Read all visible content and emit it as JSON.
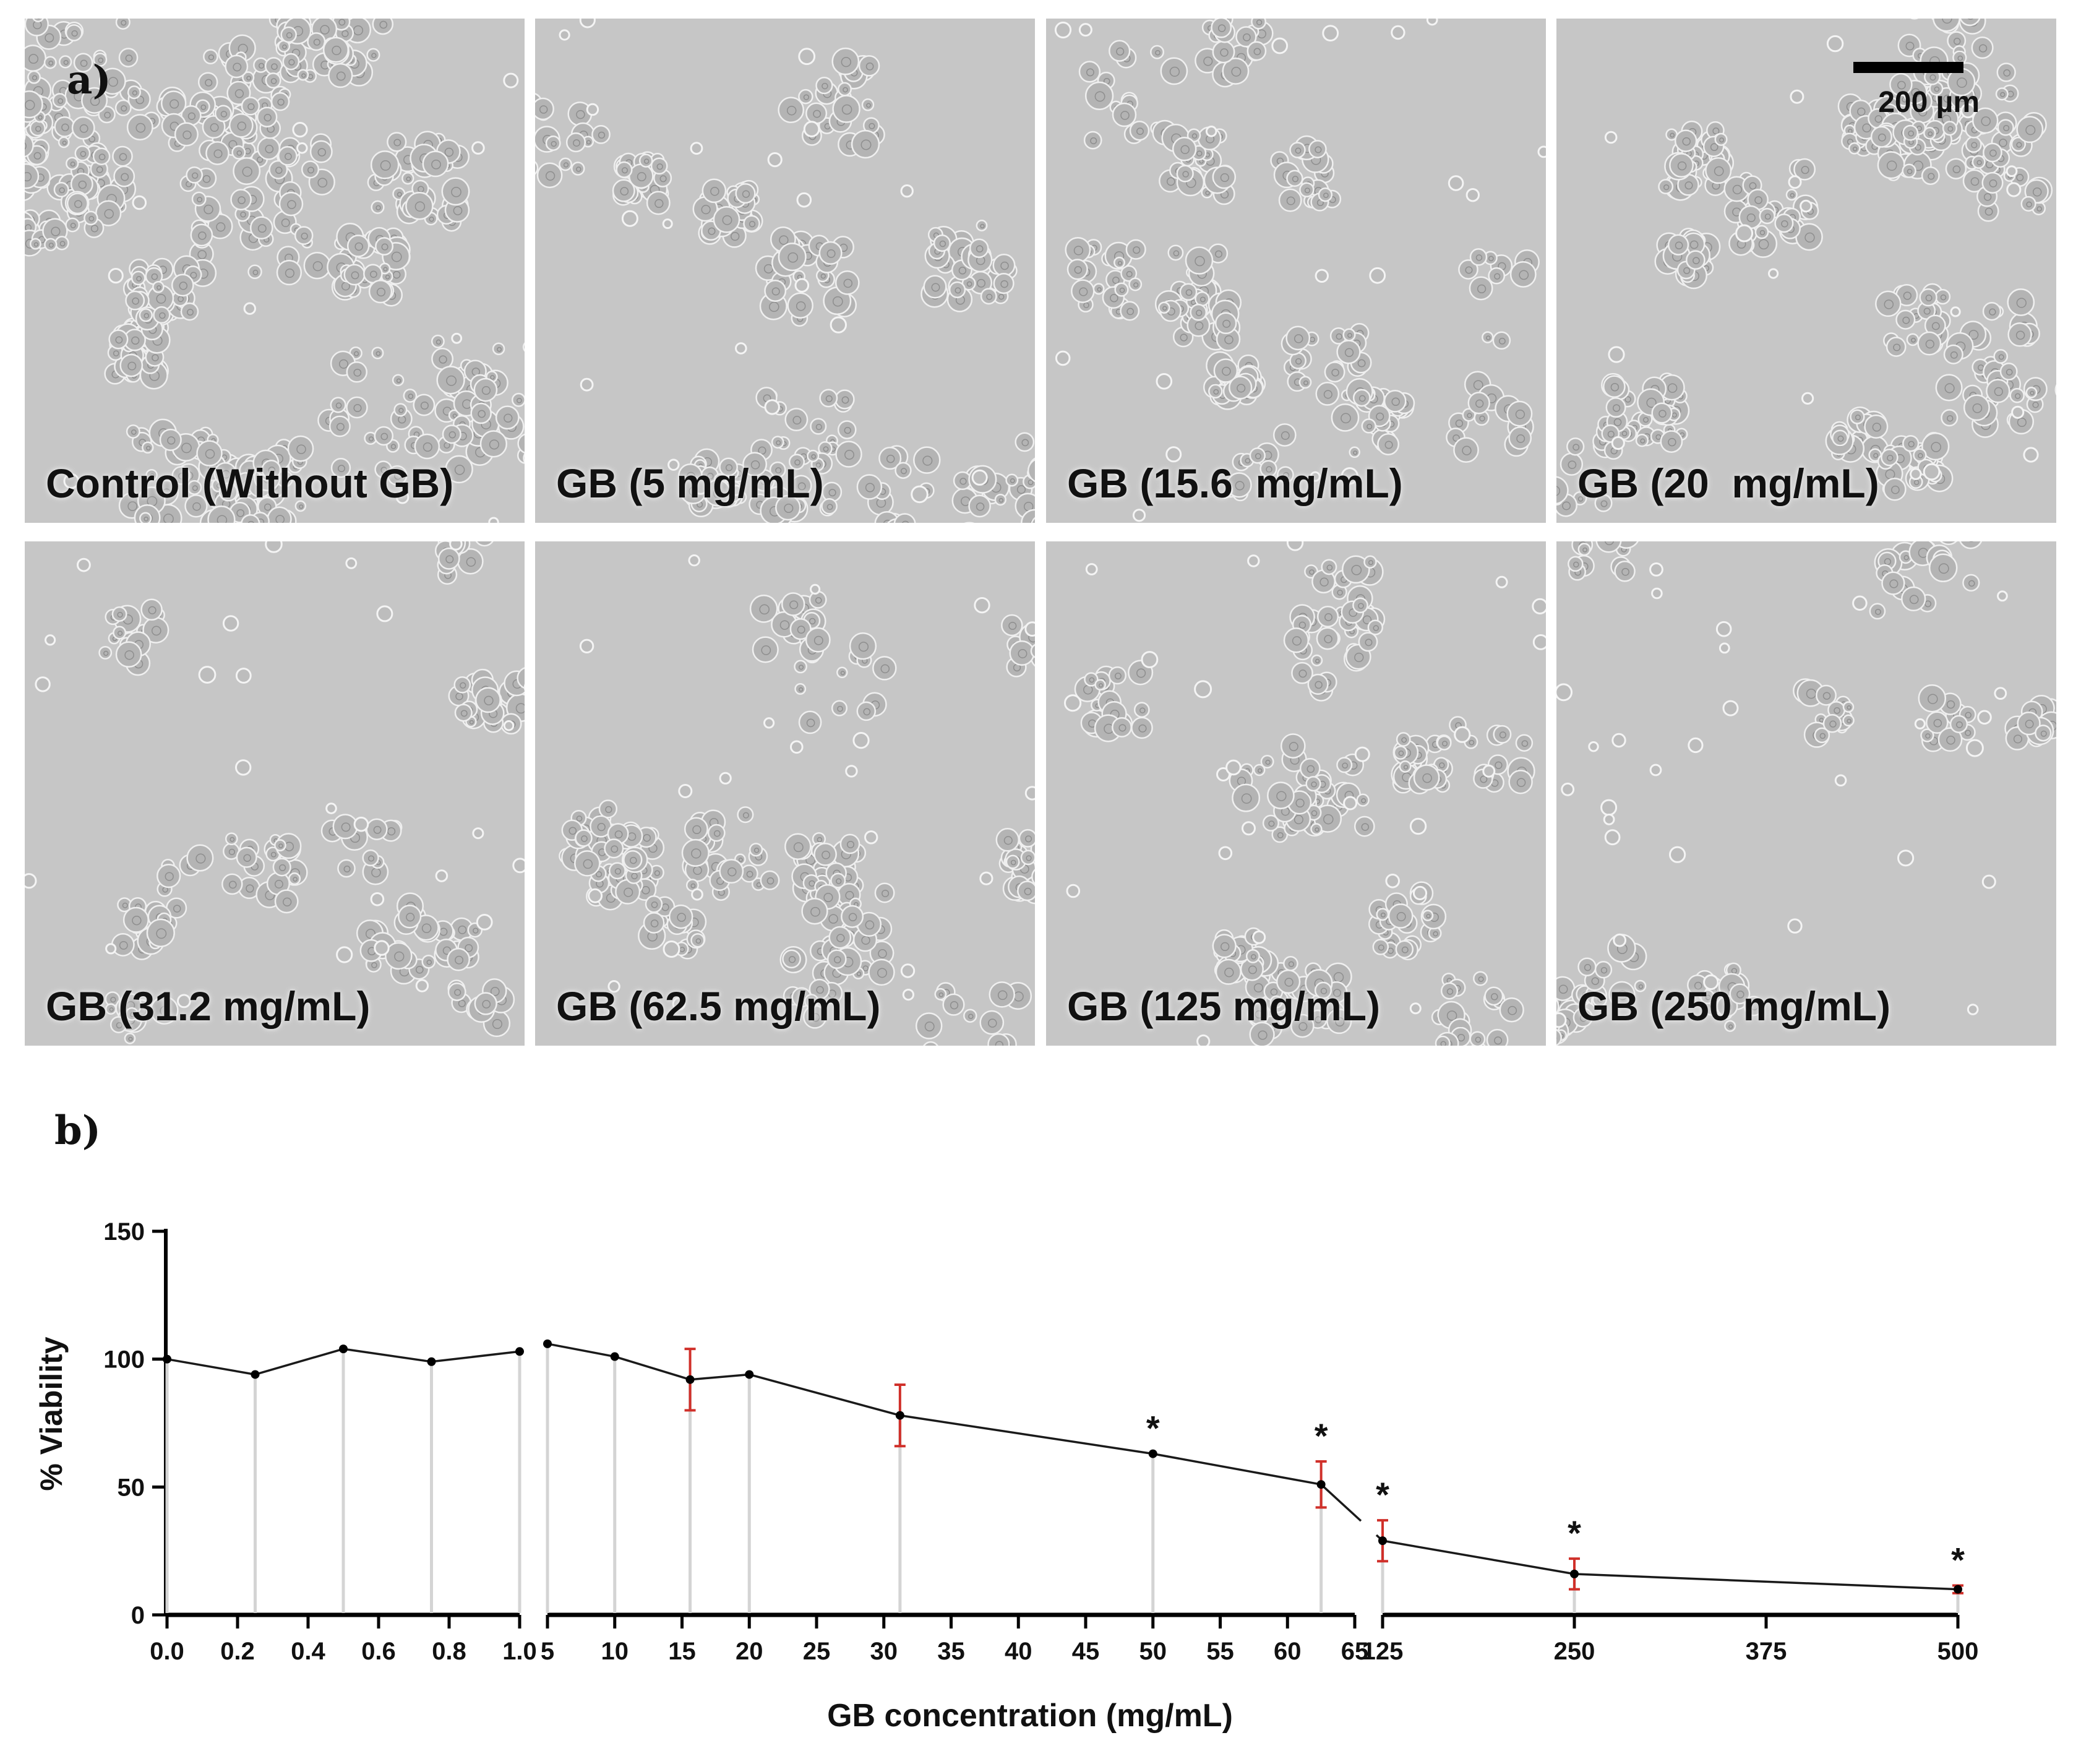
{
  "figure": {
    "panel_a_label": "a)",
    "panel_b_label": "b)",
    "scale_bar_label": "200 µm",
    "micrographs": [
      {
        "label": "Control (Without GB)",
        "density": 0.95
      },
      {
        "label": "GB (5 mg/mL)",
        "density": 0.55
      },
      {
        "label": "GB (15.6  mg/mL)",
        "density": 0.6
      },
      {
        "label": "GB (20  mg/mL)",
        "density": 0.7
      },
      {
        "label": "GB (31.2 mg/mL)",
        "density": 0.4
      },
      {
        "label": "GB (62.5 mg/mL)",
        "density": 0.55
      },
      {
        "label": "GB (125 mg/mL)",
        "density": 0.45
      },
      {
        "label": "GB (250 mg/mL)",
        "density": 0.25
      }
    ]
  },
  "chart_data": {
    "type": "line",
    "ylabel": "% Viability",
    "xlabel": "GB concentration (mg/mL)",
    "ylim": [
      0,
      150
    ],
    "yticks": [
      0,
      50,
      100,
      150
    ],
    "segments": [
      {
        "xlim": [
          0,
          1.0
        ],
        "xticks": [
          0.0,
          0.2,
          0.4,
          0.6,
          0.8,
          1.0
        ],
        "ticklabels": [
          "0.0",
          "0.2",
          "0.4",
          "0.6",
          "0.8",
          "1.0"
        ]
      },
      {
        "xlim": [
          5,
          65
        ],
        "xticks": [
          5,
          10,
          15,
          20,
          25,
          30,
          35,
          40,
          45,
          50,
          55,
          60,
          65
        ],
        "ticklabels": [
          "5",
          "10",
          "15",
          "20",
          "25",
          "30",
          "35",
          "40",
          "45",
          "50",
          "55",
          "60",
          "65"
        ]
      },
      {
        "xlim": [
          125,
          500
        ],
        "xticks": [
          125,
          250,
          375,
          500
        ],
        "ticklabels": [
          "125",
          "250",
          "375",
          "500"
        ]
      }
    ],
    "series": [
      {
        "points": [
          {
            "x": 0,
            "y": 100,
            "err": 0,
            "sig": false
          },
          {
            "x": 0.25,
            "y": 94,
            "err": 0,
            "sig": false
          },
          {
            "x": 0.5,
            "y": 104,
            "err": 0,
            "sig": false
          },
          {
            "x": 0.75,
            "y": 99,
            "err": 0,
            "sig": false
          },
          {
            "x": 1.0,
            "y": 103,
            "err": 0,
            "sig": false
          },
          {
            "x": 5,
            "y": 106,
            "err": 0,
            "sig": false
          },
          {
            "x": 10,
            "y": 101,
            "err": 0,
            "sig": false
          },
          {
            "x": 15.6,
            "y": 92,
            "err": 12,
            "sig": false
          },
          {
            "x": 20,
            "y": 94,
            "err": 0,
            "sig": false
          },
          {
            "x": 31.2,
            "y": 78,
            "err": 12,
            "sig": false
          },
          {
            "x": 50,
            "y": 63,
            "err": 0,
            "sig": true
          },
          {
            "x": 62.5,
            "y": 51,
            "err": 9,
            "sig": true
          },
          {
            "x": 125,
            "y": 29,
            "err": 8,
            "sig": true
          },
          {
            "x": 250,
            "y": 16,
            "err": 6,
            "sig": true
          },
          {
            "x": 500,
            "y": 10,
            "err": 1.5,
            "sig": true
          }
        ]
      }
    ],
    "significance_marker": "*",
    "line_color": "#1a1a1a",
    "error_color": "#d0302a",
    "droplines": true,
    "dropline_color": "#d4d4d4"
  }
}
